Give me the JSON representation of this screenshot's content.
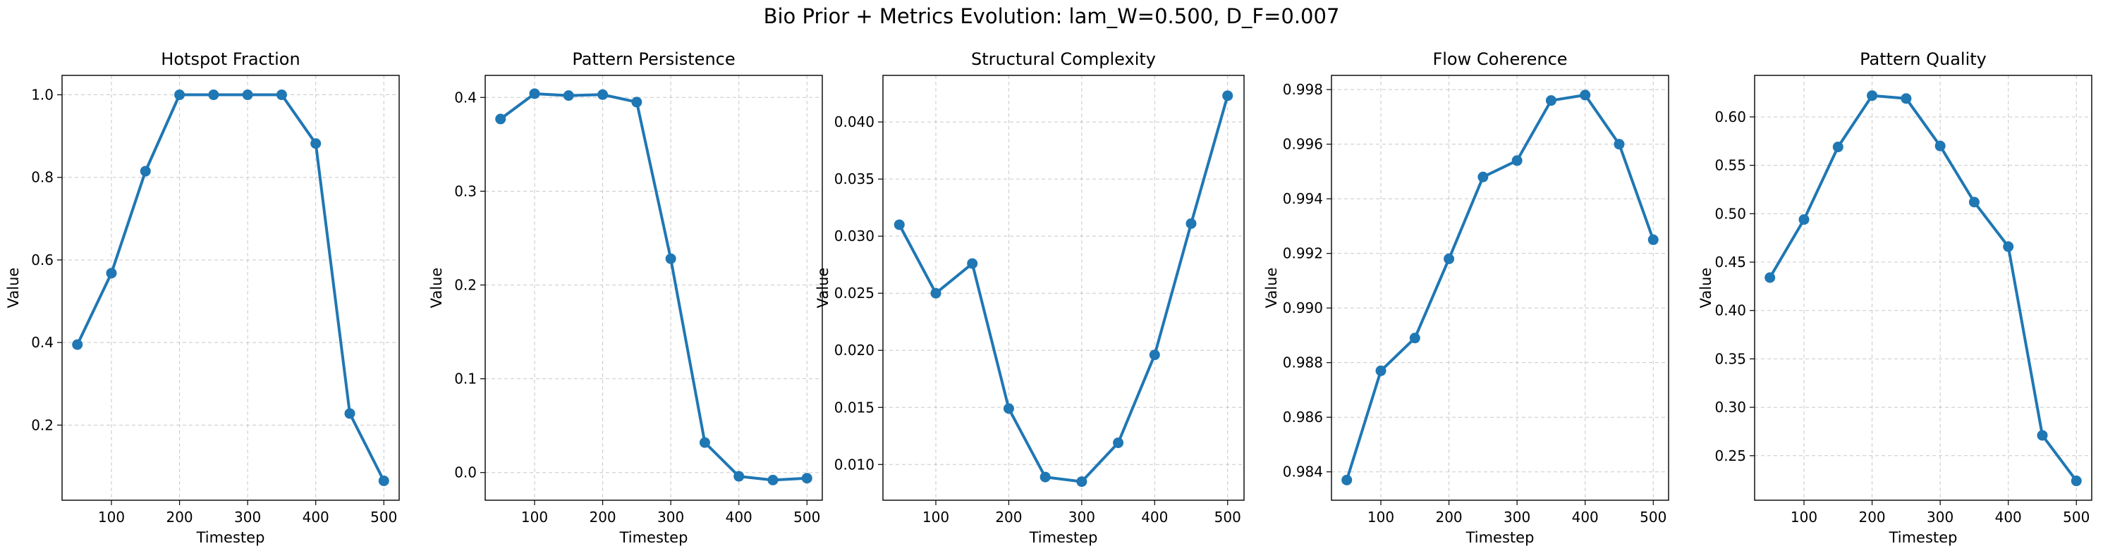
{
  "figure": {
    "suptitle": "Bio Prior + Metrics Evolution: lam_W=0.500, D_F=0.007"
  },
  "style": {
    "line_color": "#1f77b4",
    "grid_color": "#b0b0b0",
    "grid_style": "dashed"
  },
  "chart_data": [
    {
      "type": "line",
      "title": "Hotspot Fraction",
      "xlabel": "Timestep",
      "ylabel": "Value",
      "xlim": [
        27.5,
        522.5
      ],
      "ylim": [
        0.018,
        1.047
      ],
      "xticks": [
        100,
        200,
        300,
        400,
        500
      ],
      "yticks": [
        0.2,
        0.4,
        0.6,
        0.8,
        1.0
      ],
      "ytick_labels": [
        "0.2",
        "0.4",
        "0.6",
        "0.8",
        "1.0"
      ],
      "grid": true,
      "x": [
        50,
        100,
        150,
        200,
        250,
        300,
        350,
        400,
        450,
        500
      ],
      "y": [
        0.395,
        0.568,
        0.815,
        1.0,
        1.0,
        1.0,
        1.0,
        0.882,
        0.228,
        0.065
      ]
    },
    {
      "type": "line",
      "title": "Pattern Persistence",
      "xlabel": "Timestep",
      "ylabel": "Value",
      "xlim": [
        27.5,
        522.5
      ],
      "ylim": [
        -0.0295,
        0.4235
      ],
      "xticks": [
        100,
        200,
        300,
        400,
        500
      ],
      "yticks": [
        0.0,
        0.1,
        0.2,
        0.3,
        0.4
      ],
      "ytick_labels": [
        "0.0",
        "0.1",
        "0.2",
        "0.3",
        "0.4"
      ],
      "grid": true,
      "x": [
        50,
        100,
        150,
        200,
        250,
        300,
        350,
        400,
        450,
        500
      ],
      "y": [
        0.377,
        0.404,
        0.402,
        0.403,
        0.395,
        0.228,
        0.032,
        -0.004,
        -0.008,
        -0.006
      ]
    },
    {
      "type": "line",
      "title": "Structural Complexity",
      "xlabel": "Timestep",
      "ylabel": "Value",
      "xlim": [
        27.5,
        522.5
      ],
      "ylim": [
        0.00687,
        0.04408
      ],
      "xticks": [
        100,
        200,
        300,
        400,
        500
      ],
      "yticks": [
        0.01,
        0.015,
        0.02,
        0.025,
        0.03,
        0.035,
        0.04
      ],
      "ytick_labels": [
        "0.010",
        "0.015",
        "0.020",
        "0.025",
        "0.030",
        "0.035",
        "0.040"
      ],
      "grid": true,
      "x": [
        50,
        100,
        150,
        200,
        250,
        300,
        350,
        400,
        450,
        500
      ],
      "y": [
        0.031,
        0.025,
        0.0276,
        0.0149,
        0.0089,
        0.0085,
        0.0119,
        0.0196,
        0.0311,
        0.0423
      ]
    },
    {
      "type": "line",
      "title": "Flow Coherence",
      "xlabel": "Timestep",
      "ylabel": "Value",
      "xlim": [
        27.5,
        522.5
      ],
      "ylim": [
        0.98296,
        0.99852
      ],
      "xticks": [
        100,
        200,
        300,
        400,
        500
      ],
      "yticks": [
        0.984,
        0.986,
        0.988,
        0.99,
        0.992,
        0.994,
        0.996,
        0.998
      ],
      "ytick_labels": [
        "0.984",
        "0.986",
        "0.988",
        "0.990",
        "0.992",
        "0.994",
        "0.996",
        "0.998"
      ],
      "grid": true,
      "x": [
        50,
        100,
        150,
        200,
        250,
        300,
        350,
        400,
        450,
        500
      ],
      "y": [
        0.9837,
        0.9877,
        0.9889,
        0.9918,
        0.9948,
        0.9954,
        0.9976,
        0.9978,
        0.996,
        0.9925
      ]
    },
    {
      "type": "line",
      "title": "Pattern Quality",
      "xlabel": "Timestep",
      "ylabel": "Value",
      "xlim": [
        27.5,
        522.5
      ],
      "ylim": [
        0.204,
        0.6429
      ],
      "xticks": [
        100,
        200,
        300,
        400,
        500
      ],
      "yticks": [
        0.25,
        0.3,
        0.35,
        0.4,
        0.45,
        0.5,
        0.55,
        0.6
      ],
      "ytick_labels": [
        "0.25",
        "0.30",
        "0.35",
        "0.40",
        "0.45",
        "0.50",
        "0.55",
        "0.60"
      ],
      "grid": true,
      "x": [
        50,
        100,
        150,
        200,
        250,
        300,
        350,
        400,
        450,
        500
      ],
      "y": [
        0.434,
        0.494,
        0.569,
        0.622,
        0.619,
        0.57,
        0.512,
        0.466,
        0.271,
        0.224
      ]
    }
  ]
}
